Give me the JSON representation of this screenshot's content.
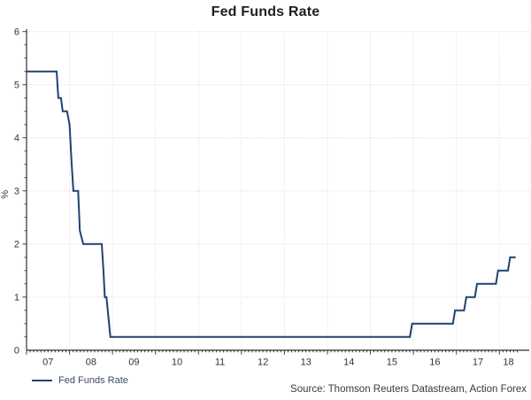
{
  "title": "Fed Funds Rate",
  "legend": {
    "label": "Fed Funds Rate"
  },
  "source": "Source: Thomson Reuters Datastream, Action Forex",
  "colors": {
    "series": "#1e4370",
    "grid": "#ddd3d3",
    "axis": "#404040",
    "tick_text": "#333333",
    "title_text": "#1f1f1f",
    "legend_text": "#3c4a5e"
  },
  "chart_data": {
    "type": "line",
    "title": "Fed Funds Rate",
    "xlabel": "",
    "ylabel": "%",
    "ylim": [
      0,
      6
    ],
    "xlim": [
      2007,
      2018.42
    ],
    "y_major_ticks": [
      0,
      1,
      2,
      3,
      4,
      5,
      6
    ],
    "y_minor_step": 0.25,
    "x_minor_step_months": 1,
    "x_year_boundaries": [
      2007,
      2008,
      2009,
      2010,
      2011,
      2012,
      2013,
      2014,
      2015,
      2016,
      2017,
      2018
    ],
    "x_tick_labels": [
      "07",
      "08",
      "09",
      "10",
      "11",
      "12",
      "13",
      "14",
      "15",
      "16",
      "17",
      "18"
    ],
    "grid": "dotted",
    "legend_position": "bottom-left",
    "series": [
      {
        "name": "Fed Funds Rate",
        "color": "#1e4370",
        "points": [
          [
            2007.0,
            5.25
          ],
          [
            2007.7,
            5.25
          ],
          [
            2007.74,
            4.75
          ],
          [
            2007.8,
            4.75
          ],
          [
            2007.84,
            4.5
          ],
          [
            2007.94,
            4.5
          ],
          [
            2008.0,
            4.25
          ],
          [
            2008.05,
            3.5
          ],
          [
            2008.09,
            3.0
          ],
          [
            2008.2,
            3.0
          ],
          [
            2008.24,
            2.25
          ],
          [
            2008.32,
            2.0
          ],
          [
            2008.75,
            2.0
          ],
          [
            2008.79,
            1.5
          ],
          [
            2008.82,
            1.0
          ],
          [
            2008.86,
            1.0
          ],
          [
            2008.95,
            0.25
          ],
          [
            2015.92,
            0.25
          ],
          [
            2015.97,
            0.5
          ],
          [
            2016.92,
            0.5
          ],
          [
            2016.97,
            0.75
          ],
          [
            2017.18,
            0.75
          ],
          [
            2017.23,
            1.0
          ],
          [
            2017.43,
            1.0
          ],
          [
            2017.48,
            1.25
          ],
          [
            2017.92,
            1.25
          ],
          [
            2017.97,
            1.5
          ],
          [
            2018.2,
            1.5
          ],
          [
            2018.25,
            1.75
          ],
          [
            2018.38,
            1.75
          ]
        ]
      }
    ]
  }
}
